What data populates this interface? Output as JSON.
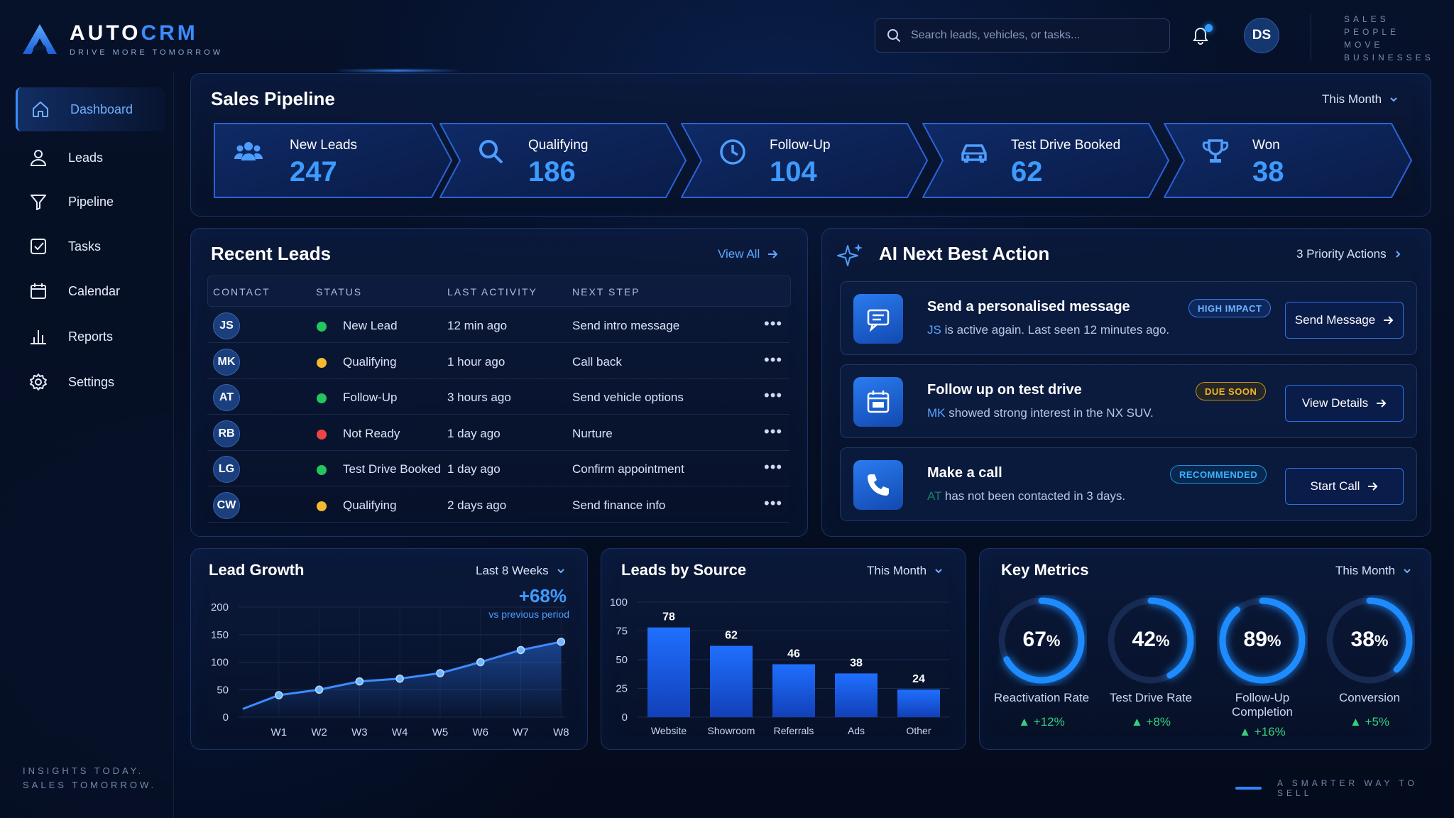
{
  "brand": {
    "name_main": "AUTO",
    "name_accent": "CRM",
    "tagline": "DRIVE MORE TOMORROW"
  },
  "search": {
    "placeholder": "Search leads, vehicles, or tasks..."
  },
  "user": {
    "initials": "DS"
  },
  "top_slogan": [
    "SALES",
    "PEOPLE",
    "MOVE",
    "BUSINESSES"
  ],
  "sidebar": {
    "items": [
      {
        "label": "Dashboard",
        "icon": "home-icon",
        "active": true
      },
      {
        "label": "Leads",
        "icon": "user-icon"
      },
      {
        "label": "Pipeline",
        "icon": "funnel-icon"
      },
      {
        "label": "Tasks",
        "icon": "checkbox-icon"
      },
      {
        "label": "Calendar",
        "icon": "calendar-icon"
      },
      {
        "label": "Reports",
        "icon": "bar-chart-icon"
      },
      {
        "label": "Settings",
        "icon": "gear-icon"
      }
    ],
    "footer": [
      "INSIGHTS TODAY.",
      "SALES TOMORROW."
    ]
  },
  "pipeline": {
    "title": "Sales Pipeline",
    "period": "This Month",
    "stages": [
      {
        "label": "New Leads",
        "value": "247",
        "icon": "users-icon"
      },
      {
        "label": "Qualifying",
        "value": "186",
        "icon": "search-icon"
      },
      {
        "label": "Follow-Up",
        "value": "104",
        "icon": "clock-icon"
      },
      {
        "label": "Test Drive Booked",
        "value": "62",
        "icon": "car-icon"
      },
      {
        "label": "Won",
        "value": "38",
        "icon": "trophy-icon"
      }
    ]
  },
  "recent_leads": {
    "title": "Recent Leads",
    "view_all": "View All",
    "columns": [
      "CONTACT",
      "STATUS",
      "LAST ACTIVITY",
      "NEXT STEP"
    ],
    "rows": [
      {
        "initials": "JS",
        "status": "New Lead",
        "status_color": "#22c55e",
        "last_activity": "12 min ago",
        "next_step": "Send intro message"
      },
      {
        "initials": "MK",
        "status": "Qualifying",
        "status_color": "#f5b82e",
        "last_activity": "1 hour ago",
        "next_step": "Call back"
      },
      {
        "initials": "AT",
        "status": "Follow-Up",
        "status_color": "#22c55e",
        "last_activity": "3 hours ago",
        "next_step": "Send vehicle options"
      },
      {
        "initials": "RB",
        "status": "Not Ready",
        "status_color": "#ef4444",
        "last_activity": "1 day ago",
        "next_step": "Nurture"
      },
      {
        "initials": "LG",
        "status": "Test Drive Booked",
        "status_color": "#22c55e",
        "last_activity": "1 day ago",
        "next_step": "Confirm appointment"
      },
      {
        "initials": "CW",
        "status": "Qualifying",
        "status_color": "#f5b82e",
        "last_activity": "2 days ago",
        "next_step": "Send finance info"
      }
    ]
  },
  "ai_actions": {
    "title": "AI Next Best Action",
    "priority": "3 Priority Actions",
    "items": [
      {
        "title": "Send a personalised message",
        "desc_lead": "JS",
        "desc_rest": " is active again. Last seen 12 minutes ago.",
        "badge": "HIGH IMPACT",
        "button": "Send Message",
        "icon": "message-icon"
      },
      {
        "title": "Follow up on test drive",
        "desc_lead": "MK",
        "desc_rest": " showed strong interest in the NX SUV.",
        "badge": "DUE SOON",
        "button": "View Details",
        "icon": "calendar-icon"
      },
      {
        "title": "Make a call",
        "desc_lead": "AT",
        "desc_rest": " has not been contacted in 3 days.",
        "badge": "RECOMMENDED",
        "button": "Start Call",
        "icon": "phone-icon"
      }
    ]
  },
  "lead_growth": {
    "title": "Lead Growth",
    "period": "Last 8 Weeks",
    "delta": "+68%",
    "delta_note": "vs previous period"
  },
  "leads_by_source": {
    "title": "Leads by Source",
    "period": "This Month"
  },
  "key_metrics": {
    "title": "Key Metrics",
    "period": "This Month",
    "items": [
      {
        "value": 67,
        "label": "Reactivation Rate",
        "delta": "+12%"
      },
      {
        "value": 42,
        "label": "Test Drive Rate",
        "delta": "+8%"
      },
      {
        "value": 89,
        "label": "Follow-Up Completion",
        "delta": "+16%"
      },
      {
        "value": 38,
        "label": "Conversion",
        "delta": "+5%"
      }
    ]
  },
  "footer_right": "A SMARTER WAY TO SELL",
  "chart_data": [
    {
      "type": "line",
      "title": "Lead Growth",
      "x": [
        "W1",
        "W2",
        "W3",
        "W4",
        "W5",
        "W6",
        "W7",
        "W8"
      ],
      "values": [
        40,
        50,
        65,
        70,
        80,
        100,
        122,
        137
      ],
      "start_value": 15,
      "ylim": [
        0,
        200
      ],
      "yticks": [
        0,
        50,
        100,
        150,
        200
      ],
      "grid": true
    },
    {
      "type": "bar",
      "title": "Leads by Source",
      "categories": [
        "Website",
        "Showroom",
        "Referrals",
        "Ads",
        "Other"
      ],
      "values": [
        78,
        62,
        46,
        38,
        24
      ],
      "ylim": [
        0,
        100
      ],
      "yticks": [
        0,
        25,
        50,
        75,
        100
      ],
      "grid": true
    }
  ],
  "colors": {
    "accent": "#3d8bff",
    "positive": "#35d07f",
    "background": "#050d1f"
  }
}
